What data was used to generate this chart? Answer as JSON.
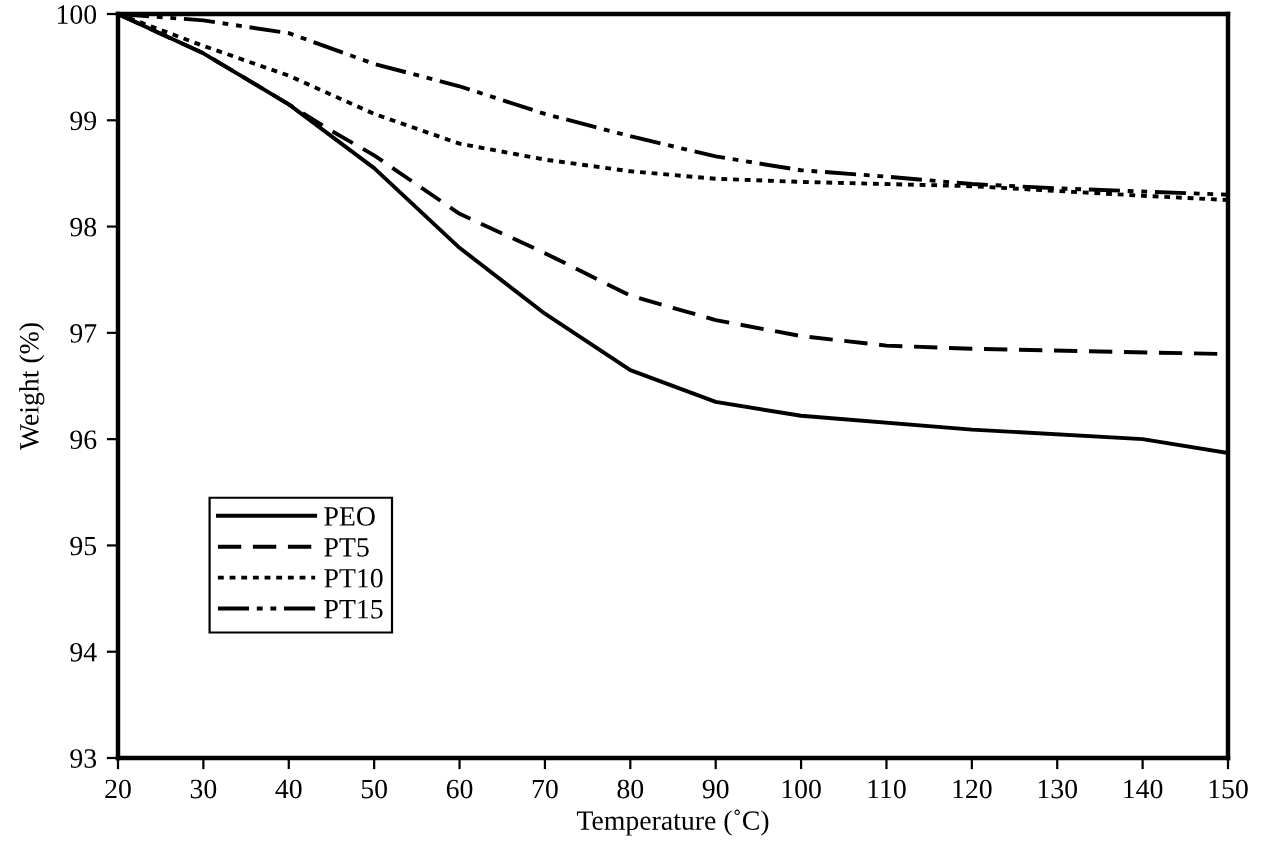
{
  "chart_data": {
    "type": "line",
    "xlabel": "Temperature (˚C)",
    "ylabel": "Weight (%)",
    "xlim": [
      20,
      150
    ],
    "ylim": [
      93,
      100
    ],
    "xticks": [
      20,
      30,
      40,
      50,
      60,
      70,
      80,
      90,
      100,
      110,
      120,
      130,
      140,
      150
    ],
    "yticks": [
      93,
      94,
      95,
      96,
      97,
      98,
      99,
      100
    ],
    "grid": false,
    "legend": "bottom left",
    "marker": "none",
    "series": [
      {
        "name": "PEO",
        "color": "#000000",
        "line_style": "solid",
        "x": [
          20,
          30,
          40,
          50,
          60,
          70,
          80,
          90,
          100,
          120,
          140,
          150
        ],
        "values": [
          100,
          99.63,
          99.15,
          98.55,
          97.8,
          97.18,
          96.65,
          96.35,
          96.22,
          96.09,
          96.0,
          95.87
        ]
      },
      {
        "name": "PT5",
        "color": "#000000",
        "line_style": "dashed",
        "x": [
          20,
          30,
          40,
          45,
          50,
          60,
          70,
          80,
          90,
          100,
          110,
          120,
          150
        ],
        "values": [
          100,
          99.63,
          99.15,
          98.9,
          98.67,
          98.12,
          97.75,
          97.35,
          97.12,
          96.97,
          96.88,
          96.85,
          96.8
        ]
      },
      {
        "name": "PT10",
        "color": "#000000",
        "line_style": "dotted",
        "x": [
          20,
          30,
          40,
          50,
          60,
          70,
          80,
          90,
          100,
          120,
          140,
          150
        ],
        "values": [
          100,
          99.7,
          99.42,
          99.06,
          98.78,
          98.63,
          98.52,
          98.45,
          98.42,
          98.38,
          98.29,
          98.25
        ]
      },
      {
        "name": "PT15",
        "color": "#000000",
        "line_style": "dashdot",
        "x": [
          20,
          30,
          40,
          50,
          60,
          70,
          80,
          90,
          100,
          110,
          120,
          130,
          140,
          150
        ],
        "values": [
          100,
          99.94,
          99.82,
          99.53,
          99.32,
          99.06,
          98.85,
          98.66,
          98.53,
          98.47,
          98.4,
          98.36,
          98.33,
          98.3
        ]
      }
    ]
  }
}
